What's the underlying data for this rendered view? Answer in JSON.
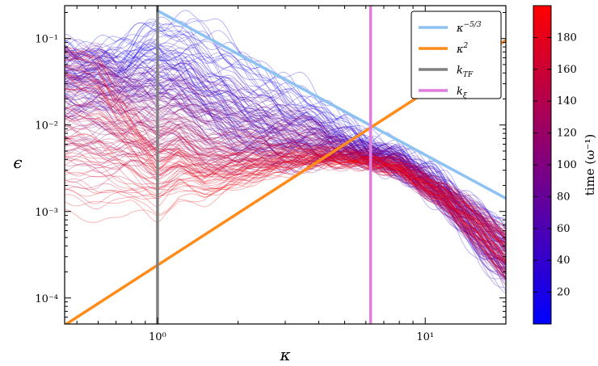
{
  "chart_data": {
    "type": "line",
    "title": "",
    "xlabel": "κ",
    "ylabel": "ϵ",
    "xscale": "log",
    "yscale": "log",
    "xlim": [
      0.45,
      20
    ],
    "ylim": [
      5e-05,
      0.24
    ],
    "x_ticks": [
      {
        "value": 1,
        "label": "10⁰"
      },
      {
        "value": 10,
        "label": "10¹"
      }
    ],
    "y_ticks": [
      {
        "value": 0.1,
        "label": "10⁻¹"
      },
      {
        "value": 0.01,
        "label": "10⁻²"
      },
      {
        "value": 0.001,
        "label": "10⁻³"
      },
      {
        "value": 0.0001,
        "label": "10⁻⁴"
      }
    ],
    "grid": false,
    "legend_position": "top-right",
    "reference_lines": [
      {
        "name": "κ^{-5/3}",
        "label_base": "κ",
        "label_sup": "−5/3",
        "label_sub": "",
        "color": "#8ec2f2",
        "kind": "power",
        "x": [
          1.0,
          20
        ],
        "y": [
          0.21,
          0.00142
        ]
      },
      {
        "name": "κ^{2}",
        "label_base": "κ",
        "label_sup": "2",
        "label_sub": "",
        "color": "#ff8c1a",
        "kind": "power",
        "x": [
          0.45,
          20
        ],
        "y": [
          4.85e-05,
          0.0955
        ]
      },
      {
        "name": "k_{TF}",
        "label_base": "k",
        "label_sup": "",
        "label_sub": "TF",
        "color": "#808080",
        "kind": "vline",
        "x": 1.0
      },
      {
        "name": "k_{ξ}",
        "label_base": "k",
        "label_sup": "",
        "label_sub": "ξ",
        "color": "#e07ce0",
        "kind": "vline",
        "x": 6.25
      }
    ],
    "spectra_envelope": {
      "note_color": "lines colored by time from blue (early) to red (late)",
      "n_curves": 200,
      "early_upper": [
        [
          0.45,
          0.085
        ],
        [
          0.7,
          0.085
        ],
        [
          1.0,
          0.18
        ],
        [
          1.3,
          0.2
        ],
        [
          2,
          0.09
        ],
        [
          3,
          0.04
        ],
        [
          4,
          0.02
        ],
        [
          6,
          0.008
        ],
        [
          8,
          0.005
        ],
        [
          12,
          0.0025
        ],
        [
          20,
          0.0006
        ]
      ],
      "early_lower": [
        [
          0.45,
          0.03
        ],
        [
          0.7,
          0.04
        ],
        [
          1.0,
          0.07
        ],
        [
          1.5,
          0.02
        ],
        [
          2,
          0.006
        ],
        [
          3,
          0.004
        ],
        [
          4,
          0.004
        ],
        [
          6,
          0.004
        ],
        [
          8,
          0.003
        ],
        [
          12,
          0.0009
        ],
        [
          20,
          0.00012
        ]
      ],
      "late_upper": [
        [
          0.45,
          0.085
        ],
        [
          0.6,
          0.06
        ],
        [
          0.8,
          0.01
        ],
        [
          1.0,
          0.0032
        ],
        [
          1.2,
          0.004
        ],
        [
          1.5,
          0.0022
        ],
        [
          2,
          0.003
        ],
        [
          3,
          0.004
        ],
        [
          4,
          0.0042
        ],
        [
          6,
          0.0038
        ],
        [
          8,
          0.0034
        ],
        [
          12,
          0.0018
        ],
        [
          20,
          0.00055
        ]
      ],
      "late_lower": [
        [
          0.45,
          0.0008
        ],
        [
          0.6,
          0.0007
        ],
        [
          0.8,
          0.0009
        ],
        [
          1.0,
          0.0007
        ],
        [
          1.2,
          0.0012
        ],
        [
          1.5,
          0.0012
        ],
        [
          2,
          0.0018
        ],
        [
          3,
          0.0028
        ],
        [
          4,
          0.0035
        ],
        [
          6,
          0.0034
        ],
        [
          8,
          0.0028
        ],
        [
          12,
          0.0011
        ],
        [
          20,
          0.0002
        ]
      ]
    },
    "colorbar": {
      "label": "time (ω⁻¹)",
      "min": 0,
      "max": 200,
      "ticks": [
        20,
        40,
        60,
        80,
        100,
        120,
        140,
        160,
        180
      ],
      "colors": [
        "#0000ff",
        "#ff0000"
      ]
    }
  }
}
